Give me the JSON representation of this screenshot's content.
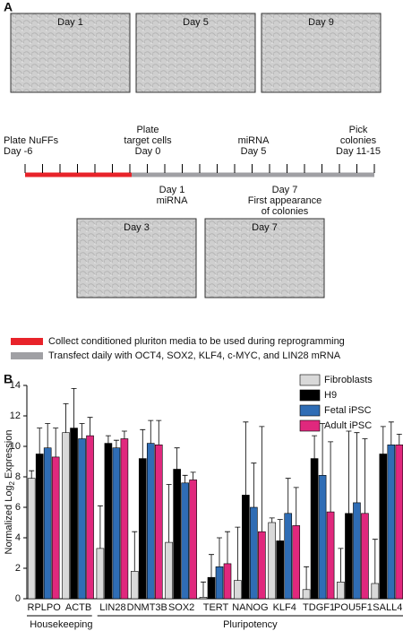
{
  "panel_a": {
    "label": "A",
    "images_top": [
      "Day 1",
      "Day 5",
      "Day 9"
    ],
    "images_bottom": [
      "Day 3",
      "Day 7"
    ],
    "timeline_above": [
      [
        "Plate NuFFs",
        "Day -6"
      ],
      [
        "Plate",
        "target cells",
        "Day 0"
      ],
      [
        "miRNA",
        "Day 5"
      ],
      [
        "Pick",
        "colonies",
        "Day 11-15"
      ]
    ],
    "timeline_below": [
      [
        "Day 1",
        "miRNA"
      ],
      [
        "Day 7",
        "First appearance",
        "of colonies"
      ]
    ],
    "legend": [
      {
        "text": "Collect conditioned pluriton media to be used during reprogramming",
        "color": "#e8232a"
      },
      {
        "text": "Transfect daily with OCT4, SOX2, KLF4, c-MYC, and LIN28 mRNA",
        "color": "#a0a0a4"
      }
    ]
  },
  "panel_b": {
    "label": "B",
    "groups": [
      "Housekeeping",
      "Pluripotency"
    ]
  },
  "chart_data": {
    "type": "bar",
    "ylabel": {
      "text": "Normalized Log",
      "subscript": "2",
      "suffix": " Expression"
    },
    "categories": [
      "RPLPO",
      "ACTB",
      "LIN28",
      "DNMT3B",
      "SOX2",
      "TERT",
      "NANOG",
      "KLF4",
      "TDGF1",
      "POU5F1",
      "SALL4"
    ],
    "series": [
      {
        "name": "Fibroblasts",
        "color": "#d9d9d9",
        "values": [
          7.9,
          10.9,
          3.3,
          1.8,
          3.7,
          0.1,
          1.2,
          5.0,
          0.6,
          1.1,
          1.0
        ],
        "errors": [
          0.5,
          1.9,
          2.8,
          2.6,
          3.8,
          1.0,
          3.5,
          0.3,
          1.5,
          2.2,
          2.9
        ]
      },
      {
        "name": "H9",
        "color": "#000000",
        "values": [
          9.5,
          11.2,
          10.2,
          9.2,
          8.5,
          1.4,
          6.8,
          3.8,
          9.2,
          5.6,
          9.5
        ],
        "errors": [
          1.7,
          2.6,
          0.5,
          1.9,
          1.4,
          1.5,
          4.8,
          1.4,
          1.5,
          5.4,
          1.8
        ]
      },
      {
        "name": "Fetal iPSC",
        "color": "#2f6db5",
        "values": [
          9.9,
          10.5,
          9.9,
          10.2,
          7.6,
          2.1,
          6.0,
          5.6,
          8.1,
          6.3,
          10.1
        ],
        "errors": [
          1.6,
          1.0,
          0.5,
          1.5,
          0.5,
          1.9,
          2.9,
          2.3,
          3.4,
          4.6,
          1.5
        ]
      },
      {
        "name": "Adult iPSC",
        "color": "#e0287d",
        "values": [
          9.3,
          10.7,
          10.5,
          10.1,
          7.8,
          2.3,
          4.4,
          4.8,
          5.7,
          5.6,
          10.1
        ],
        "errors": [
          1.9,
          1.2,
          0.5,
          1.6,
          0.5,
          2.1,
          6.9,
          2.5,
          4.6,
          4.9,
          0.7
        ]
      }
    ],
    "ylim": [
      0,
      14
    ],
    "yticks": [
      0,
      2,
      4,
      6,
      8,
      10,
      12,
      14
    ],
    "grid": false
  }
}
